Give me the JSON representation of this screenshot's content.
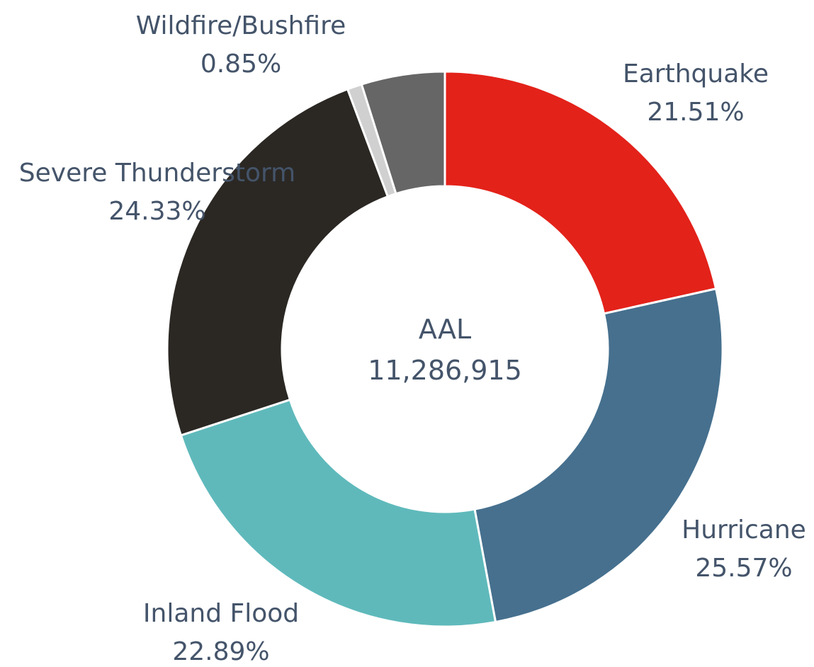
{
  "chart_data": {
    "type": "pie",
    "title": "",
    "center_label": "AAL",
    "center_value": "11,286,915",
    "slices": [
      {
        "name": "Earthquake",
        "value": 21.51,
        "pct_label": "21.51%",
        "color": "#e3221a"
      },
      {
        "name": "Hurricane",
        "value": 25.57,
        "pct_label": "25.57%",
        "color": "#46708e"
      },
      {
        "name": "Inland Flood",
        "value": 22.89,
        "pct_label": "22.89%",
        "color": "#5fb9bb"
      },
      {
        "name": "Severe Thunderstorm",
        "value": 24.33,
        "pct_label": "24.33%",
        "color": "#2b2824"
      },
      {
        "name": "Wildfire/Bushfire",
        "value": 0.85,
        "pct_label": "0.85%",
        "color": "#d0d0d0"
      },
      {
        "name": "",
        "value": 4.85,
        "pct_label": "",
        "color": "#666666"
      }
    ]
  }
}
